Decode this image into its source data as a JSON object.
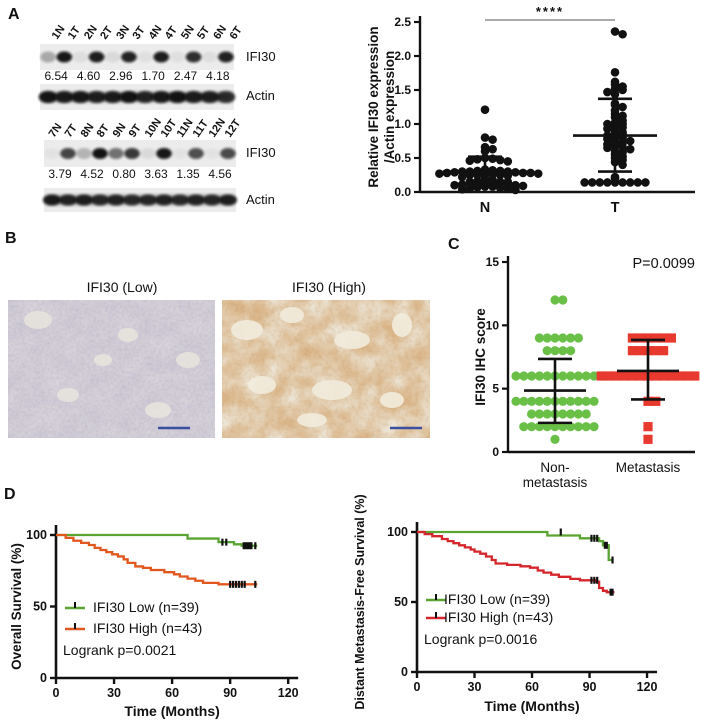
{
  "panels": {
    "a": "A",
    "b": "B",
    "c": "C",
    "d": "D"
  },
  "panel_a": {
    "blot_rows": [
      {
        "lanes": [
          "1N",
          "1T",
          "2N",
          "2T",
          "3N",
          "3T",
          "4N",
          "4T",
          "5N",
          "5T",
          "6N",
          "6T"
        ],
        "ifi30": "IFI30",
        "actin": "Actin",
        "values": [
          "6.54",
          "4.60",
          "2.96",
          "1.70",
          "2.47",
          "4.18"
        ],
        "ifi30_bands": [
          0.3,
          0.95,
          0.06,
          0.92,
          0.08,
          0.9,
          0.05,
          0.93,
          0.05,
          0.85,
          0.06,
          0.9
        ],
        "actin_bands": [
          0.95,
          0.9,
          0.92,
          0.88,
          0.9,
          0.95,
          0.85,
          0.92,
          0.95,
          0.9,
          0.88,
          0.8
        ]
      },
      {
        "lanes": [
          "7N",
          "7T",
          "8N",
          "8T",
          "9N",
          "9T",
          "10N",
          "10T",
          "11N",
          "11T",
          "12N",
          "12T"
        ],
        "ifi30": "IFI30",
        "actin": "Actin",
        "values": [
          "3.79",
          "4.52",
          "0.80",
          "3.63",
          "1.35",
          "4.56"
        ],
        "ifi30_bands": [
          0.04,
          0.75,
          0.25,
          0.97,
          0.55,
          0.8,
          0.08,
          0.95,
          0.04,
          0.7,
          0.04,
          0.72
        ],
        "actin_bands": [
          0.9,
          0.85,
          0.88,
          0.82,
          0.85,
          0.8,
          0.82,
          0.85,
          0.8,
          0.85,
          0.82,
          0.88
        ]
      }
    ]
  },
  "panel_b": {
    "titles": [
      "IFI30 (Low)",
      "IFI30 (High)"
    ]
  },
  "panel_c": {
    "p_label": "P=0.0099"
  },
  "colors": {
    "scalebar_blue": "#3c4f9e",
    "dot_black": "#111111"
  },
  "chart_data": [
    {
      "id": "A-dotplot",
      "type": "scatter",
      "ylabel_lines": [
        "Relative IFI30 expression",
        "/Actin expression"
      ],
      "ylim": [
        0,
        2.5
      ],
      "yticks": [
        "0.0",
        "0.5",
        "1.0",
        "1.5",
        "2.0",
        "2.5"
      ],
      "significance": "****",
      "groups": [
        {
          "label": "N",
          "marker": "circle",
          "color": "#111111",
          "mean": 0.3,
          "err_low": 0.09,
          "err_high": 0.52,
          "values": [
            1.21,
            0.8,
            0.77,
            0.66,
            0.63,
            0.6,
            0.5,
            0.49,
            0.48,
            0.47,
            0.46,
            0.45,
            0.33,
            0.32,
            0.32,
            0.31,
            0.31,
            0.3,
            0.3,
            0.3,
            0.29,
            0.29,
            0.28,
            0.28,
            0.28,
            0.27,
            0.27,
            0.26,
            0.26,
            0.25,
            0.25,
            0.25,
            0.24,
            0.22,
            0.2,
            0.18,
            0.16,
            0.15,
            0.15,
            0.15,
            0.14,
            0.14,
            0.13,
            0.13,
            0.12,
            0.12,
            0.11,
            0.1,
            0.1,
            0.09,
            0.08,
            0.08,
            0.07,
            0.06,
            0.05,
            0.05,
            0.04,
            0.03
          ]
        },
        {
          "label": "T",
          "marker": "circle",
          "color": "#111111",
          "mean": 0.83,
          "err_low": 0.3,
          "err_high": 1.37,
          "values": [
            2.32,
            2.36,
            1.76,
            1.62,
            1.58,
            1.55,
            1.52,
            1.5,
            1.47,
            1.44,
            1.3,
            1.28,
            1.25,
            1.2,
            1.15,
            1.12,
            1.1,
            1.05,
            1.02,
            1.0,
            1.0,
            0.98,
            0.95,
            0.93,
            0.9,
            0.88,
            0.86,
            0.85,
            0.83,
            0.8,
            0.8,
            0.78,
            0.75,
            0.74,
            0.72,
            0.7,
            0.68,
            0.66,
            0.65,
            0.63,
            0.6,
            0.58,
            0.55,
            0.52,
            0.5,
            0.47,
            0.44,
            0.4,
            0.22,
            0.2,
            0.14,
            0.14,
            0.14,
            0.14,
            0.14,
            0.14,
            0.14,
            0.14,
            0.14
          ]
        }
      ]
    },
    {
      "id": "C-dotplot",
      "type": "scatter",
      "ylabel_lines": [
        "IFI30 IHC score"
      ],
      "ylim": [
        0,
        15
      ],
      "yticks": [
        "0",
        "5",
        "10",
        "15"
      ],
      "annotation": "P=0.0099",
      "groups": [
        {
          "label": "Non-\nmetastasis",
          "marker": "circle",
          "color": "#6abf47",
          "mean": 4.85,
          "err_low": 2.3,
          "err_high": 7.35,
          "values": [
            12,
            12,
            9,
            9,
            9,
            9,
            9,
            9,
            8,
            8,
            8,
            8,
            6,
            6,
            6,
            6,
            6,
            6,
            6,
            6,
            6,
            6,
            6,
            6,
            4,
            4,
            4,
            4,
            4,
            4,
            4,
            4,
            4,
            4,
            4,
            3,
            3,
            3,
            3,
            3,
            3,
            3,
            3,
            2,
            2,
            2,
            2,
            2,
            2,
            2,
            2,
            2,
            2,
            1
          ]
        },
        {
          "label": "Metastasis",
          "marker": "square",
          "color": "#e8392e",
          "mean": 6.4,
          "err_low": 4.15,
          "err_high": 8.85,
          "values": [
            9,
            9,
            9,
            9,
            9,
            9,
            8,
            8,
            8,
            8,
            8,
            6,
            6,
            6,
            6,
            6,
            6,
            6,
            6,
            6,
            6,
            6,
            6,
            6,
            4,
            4,
            2,
            1
          ]
        }
      ]
    },
    {
      "id": "D-os",
      "type": "km",
      "ylabel": "Overall Survival (%)",
      "xlabel": "Time (Months)",
      "ylim": [
        0,
        100
      ],
      "yticks": [
        0,
        50,
        100
      ],
      "xticks": [
        0,
        30,
        60,
        90,
        120
      ],
      "logrank": "Logrank p=0.0021",
      "series": [
        {
          "label": "IFI30 Low (n=39)",
          "color": "#5aa432",
          "steps": [
            [
              0,
              100
            ],
            [
              68,
              100
            ],
            [
              68,
              97.5
            ],
            [
              84,
              97.5
            ],
            [
              84,
              95
            ],
            [
              92,
              95
            ],
            [
              92,
              93.5
            ],
            [
              96,
              93.5
            ],
            [
              96,
              92.5
            ],
            [
              104,
              92.5
            ]
          ],
          "censors": [
            [
              86,
              95
            ],
            [
              88,
              95
            ],
            [
              97,
              92.5
            ],
            [
              98,
              92.5
            ],
            [
              99,
              92.5
            ],
            [
              100,
              92.5
            ],
            [
              101,
              92.5
            ],
            [
              103,
              92.5
            ]
          ]
        },
        {
          "label": "IFI30 High (n=43)",
          "color": "#e2571d",
          "steps": [
            [
              0,
              100
            ],
            [
              5,
              100
            ],
            [
              5,
              98
            ],
            [
              9,
              98
            ],
            [
              9,
              96
            ],
            [
              13,
              96
            ],
            [
              13,
              94.5
            ],
            [
              17,
              94.5
            ],
            [
              17,
              93
            ],
            [
              20,
              93
            ],
            [
              20,
              91
            ],
            [
              23,
              91
            ],
            [
              23,
              89.5
            ],
            [
              26,
              89.5
            ],
            [
              26,
              88
            ],
            [
              29,
              88
            ],
            [
              29,
              86.5
            ],
            [
              32,
              86.5
            ],
            [
              32,
              85
            ],
            [
              35,
              85
            ],
            [
              35,
              83
            ],
            [
              37,
              83
            ],
            [
              37,
              80.5
            ],
            [
              41,
              80.5
            ],
            [
              41,
              78
            ],
            [
              45,
              78
            ],
            [
              45,
              77
            ],
            [
              49,
              77
            ],
            [
              49,
              75.5
            ],
            [
              56,
              75.5
            ],
            [
              56,
              74
            ],
            [
              61,
              74
            ],
            [
              61,
              72.5
            ],
            [
              64,
              72.5
            ],
            [
              64,
              71
            ],
            [
              68,
              71
            ],
            [
              68,
              69.5
            ],
            [
              72,
              69.5
            ],
            [
              72,
              68
            ],
            [
              76,
              68
            ],
            [
              76,
              66.5
            ],
            [
              84,
              66.5
            ],
            [
              84,
              65.5
            ],
            [
              104,
              65.5
            ]
          ],
          "censors": [
            [
              90,
              65.5
            ],
            [
              91.5,
              65.5
            ],
            [
              93,
              65.5
            ],
            [
              94.5,
              65.5
            ],
            [
              96,
              65.5
            ],
            [
              97.5,
              65.5
            ],
            [
              103,
              65.5
            ]
          ]
        }
      ]
    },
    {
      "id": "D-dmfs",
      "type": "km",
      "ylabel": "Distant Metastasis-Free Survival (%)",
      "xlabel": "Time (Months)",
      "ylim": [
        0,
        100
      ],
      "yticks": [
        0,
        50,
        100
      ],
      "xticks": [
        0,
        30,
        60,
        90,
        120
      ],
      "logrank": "Logrank p=0.0016",
      "series": [
        {
          "label": "IFI30 Low (n=39)",
          "color": "#5aa432",
          "steps": [
            [
              0,
              100
            ],
            [
              68,
              100
            ],
            [
              68,
              97.5
            ],
            [
              85,
              97.5
            ],
            [
              85,
              95.5
            ],
            [
              95,
              95.5
            ],
            [
              95,
              93.5
            ],
            [
              97,
              93.5
            ],
            [
              97,
              90.5
            ],
            [
              100,
              90.5
            ],
            [
              100,
              80
            ],
            [
              102.5,
              80
            ]
          ],
          "censors": [
            [
              75,
              100
            ],
            [
              91,
              95.5
            ],
            [
              92.5,
              95.5
            ],
            [
              94,
              95.5
            ],
            [
              98,
              90.5
            ],
            [
              99,
              90.5
            ],
            [
              102,
              80
            ]
          ]
        },
        {
          "label": "IFI30 High (n=43)",
          "color": "#d5262b",
          "steps": [
            [
              0,
              100
            ],
            [
              4,
              100
            ],
            [
              4,
              98.5
            ],
            [
              8,
              98.5
            ],
            [
              8,
              97
            ],
            [
              13,
              97
            ],
            [
              13,
              95
            ],
            [
              16,
              95
            ],
            [
              16,
              93.5
            ],
            [
              19,
              93.5
            ],
            [
              19,
              92
            ],
            [
              22,
              92
            ],
            [
              22,
              90.5
            ],
            [
              25,
              90.5
            ],
            [
              25,
              89
            ],
            [
              28,
              89
            ],
            [
              28,
              87.5
            ],
            [
              30,
              87.5
            ],
            [
              30,
              86
            ],
            [
              33,
              86
            ],
            [
              33,
              84.5
            ],
            [
              36,
              84.5
            ],
            [
              36,
              82.5
            ],
            [
              39,
              82.5
            ],
            [
              39,
              80
            ],
            [
              41,
              80
            ],
            [
              41,
              77.5
            ],
            [
              47,
              77.5
            ],
            [
              47,
              76.5
            ],
            [
              54,
              76.5
            ],
            [
              54,
              75.5
            ],
            [
              59,
              75.5
            ],
            [
              59,
              74.5
            ],
            [
              63,
              74.5
            ],
            [
              63,
              72.5
            ],
            [
              66,
              72.5
            ],
            [
              66,
              71
            ],
            [
              70,
              71
            ],
            [
              70,
              69.5
            ],
            [
              74,
              69.5
            ],
            [
              74,
              68
            ],
            [
              80,
              68
            ],
            [
              80,
              66.5
            ],
            [
              85,
              66.5
            ],
            [
              85,
              65.5
            ],
            [
              93,
              65.5
            ],
            [
              93,
              64.5
            ],
            [
              95,
              64.5
            ],
            [
              95,
              60
            ],
            [
              97,
              60
            ],
            [
              97,
              58
            ],
            [
              99,
              58
            ],
            [
              99,
              57
            ],
            [
              103,
              57
            ]
          ],
          "censors": [
            [
              91,
              65.5
            ],
            [
              92.5,
              65.5
            ],
            [
              94,
              65.5
            ],
            [
              101,
              57
            ],
            [
              102,
              57
            ]
          ]
        }
      ]
    }
  ]
}
